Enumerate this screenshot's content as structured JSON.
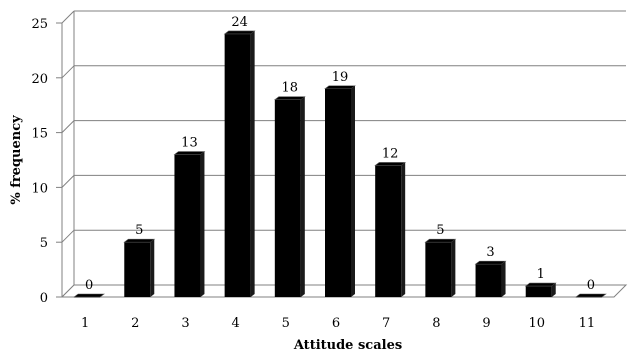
{
  "chart_data": {
    "type": "bar",
    "title": "",
    "xlabel": "Attitude scales",
    "ylabel": "% frequency",
    "categories": [
      "1",
      "2",
      "3",
      "4",
      "5",
      "6",
      "7",
      "8",
      "9",
      "10",
      "11"
    ],
    "values": [
      0,
      5,
      13,
      24,
      18,
      19,
      12,
      5,
      3,
      1,
      0
    ],
    "ylim": [
      0,
      25
    ],
    "yticks": [
      0,
      5,
      10,
      15,
      20,
      25
    ],
    "grid": true,
    "legend": "none",
    "style": "3d",
    "bar_color": "#000000"
  }
}
